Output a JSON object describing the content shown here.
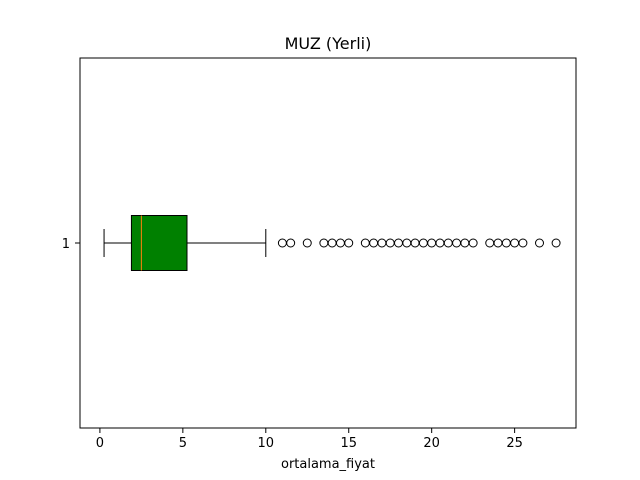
{
  "chart_data": {
    "type": "boxplot",
    "orientation": "horizontal",
    "title": "MUZ (Yerli)",
    "xlabel": "ortalama_fiyat",
    "ylabel": "",
    "xlim": [
      -1.2,
      28.7
    ],
    "x_ticks": [
      0,
      5,
      10,
      15,
      20,
      25
    ],
    "y_ticks": [
      "1"
    ],
    "grid": false,
    "series": [
      {
        "category": "1",
        "whisker_low": 0.25,
        "q1": 1.9,
        "median": 2.5,
        "q3": 5.25,
        "whisker_high": 10.0,
        "outliers": [
          11.0,
          11.5,
          12.5,
          13.5,
          14.0,
          14.5,
          15.0,
          16.0,
          16.5,
          17.0,
          17.5,
          18.0,
          18.5,
          19.0,
          19.5,
          20.0,
          20.5,
          21.0,
          21.5,
          22.0,
          22.5,
          23.5,
          24.0,
          24.5,
          25.0,
          25.5,
          26.5,
          27.5
        ]
      }
    ],
    "colors": {
      "box_fill": "#008000",
      "median_line": "#ff7f0e",
      "lines": "#000000"
    }
  }
}
